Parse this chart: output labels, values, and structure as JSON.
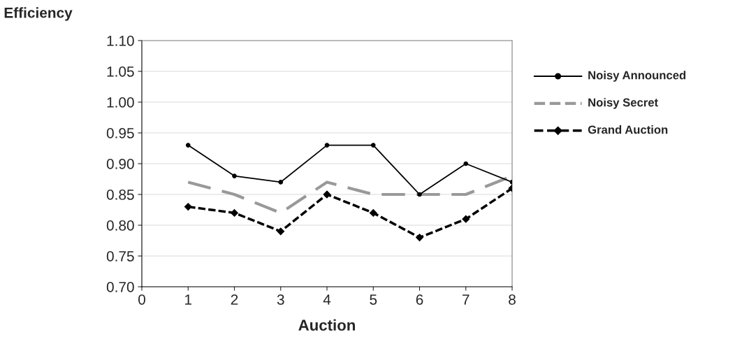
{
  "chart_data": {
    "type": "line",
    "xlabel": "Auction",
    "ylabel": "Efficiency",
    "x": [
      1,
      2,
      3,
      4,
      5,
      6,
      7,
      8
    ],
    "xlim": [
      0,
      8
    ],
    "xticks": [
      0,
      1,
      2,
      3,
      4,
      5,
      6,
      7,
      8
    ],
    "ylim": [
      0.7,
      1.1
    ],
    "yticks": [
      {
        "value": 0.7,
        "label": "0.70"
      },
      {
        "value": 0.75,
        "label": "0.75"
      },
      {
        "value": 0.8,
        "label": "0.80"
      },
      {
        "value": 0.85,
        "label": "0.85"
      },
      {
        "value": 0.9,
        "label": "0.90"
      },
      {
        "value": 0.95,
        "label": "0.95"
      },
      {
        "value": 1.0,
        "label": "1.00"
      },
      {
        "value": 1.05,
        "label": "1.05"
      },
      {
        "value": 1.1,
        "label": "1.10"
      }
    ],
    "grid": "y",
    "legend": "right",
    "series": [
      {
        "name": "Noisy Announced",
        "color": "#000000",
        "marker": "circle",
        "line_style": "solid",
        "values": [
          0.93,
          0.88,
          0.87,
          0.93,
          0.93,
          0.85,
          0.9,
          0.87
        ]
      },
      {
        "name": "Noisy Secret",
        "color": "#999999",
        "marker": "none",
        "line_style": "dashed",
        "values": [
          0.87,
          0.85,
          0.82,
          0.87,
          0.85,
          0.85,
          0.85,
          0.88
        ]
      },
      {
        "name": "Grand Auction",
        "color": "#000000",
        "marker": "diamond",
        "line_style": "dotted",
        "values": [
          0.83,
          0.82,
          0.79,
          0.85,
          0.82,
          0.78,
          0.81,
          0.86
        ]
      }
    ]
  }
}
